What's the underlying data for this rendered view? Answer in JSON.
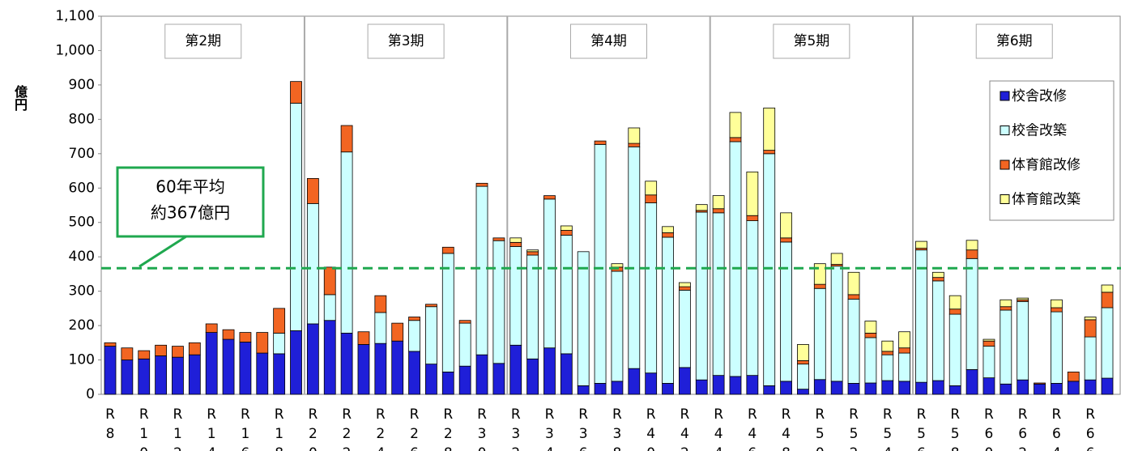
{
  "chart_data": {
    "type": "stacked-bar",
    "y_label": "億円",
    "categories": [
      "R 8",
      null,
      "R 10",
      null,
      "R 12",
      null,
      "R 14",
      null,
      "R 16",
      null,
      "R 18",
      null,
      "R 20",
      null,
      "R 22",
      null,
      "R 24",
      null,
      "R 26",
      null,
      "R 28",
      null,
      "R 30",
      null,
      "R 32",
      null,
      "R 34",
      null,
      "R 36",
      null,
      "R 38",
      null,
      "R 40",
      null,
      "R 42",
      null,
      "R 44",
      null,
      "R 46",
      null,
      "R 48",
      null,
      "R 50",
      null,
      "R 52",
      null,
      "R 54",
      null,
      "R 56",
      null,
      "R 58",
      null,
      "R 60",
      null,
      "R 62",
      null,
      "R 64",
      null,
      "R 66",
      null
    ],
    "series": [
      {
        "name": "校舎改修",
        "color": "#1f1fd8",
        "values": [
          140,
          100,
          103,
          112,
          108,
          115,
          180,
          160,
          152,
          120,
          118,
          185,
          205,
          215,
          178,
          145,
          148,
          155,
          125,
          88,
          65,
          82,
          115,
          90,
          143,
          103,
          135,
          118,
          25,
          32,
          38,
          75,
          62,
          32,
          78,
          42,
          55,
          52,
          55,
          25,
          38,
          15,
          43,
          38,
          32,
          33,
          40,
          38,
          35,
          40,
          25,
          72,
          48,
          30,
          42,
          30,
          32,
          38,
          42,
          47
        ]
      },
      {
        "name": "校舎改築",
        "color": "#ccffff",
        "values": [
          0,
          0,
          0,
          0,
          0,
          0,
          0,
          0,
          0,
          0,
          60,
          662,
          350,
          75,
          527,
          0,
          90,
          0,
          90,
          167,
          345,
          125,
          490,
          357,
          287,
          302,
          433,
          345,
          390,
          695,
          320,
          645,
          495,
          425,
          225,
          488,
          473,
          683,
          450,
          675,
          405,
          73,
          265,
          335,
          245,
          132,
          75,
          82,
          385,
          290,
          208,
          323,
          92,
          215,
          228,
          0,
          208,
          0,
          125,
          205
        ]
      },
      {
        "name": "体育館改修",
        "color": "#f26522",
        "values": [
          10,
          35,
          24,
          31,
          32,
          35,
          25,
          28,
          28,
          60,
          72,
          63,
          73,
          80,
          77,
          37,
          49,
          52,
          10,
          7,
          18,
          8,
          9,
          8,
          12,
          10,
          10,
          14,
          0,
          10,
          12,
          10,
          23,
          13,
          10,
          5,
          12,
          12,
          15,
          10,
          12,
          10,
          12,
          5,
          13,
          13,
          10,
          15,
          5,
          10,
          15,
          25,
          15,
          10,
          5,
          3,
          12,
          27,
          50,
          45
        ]
      },
      {
        "name": "体育館改築",
        "color": "#ffff99",
        "values": [
          0,
          0,
          0,
          0,
          0,
          0,
          0,
          0,
          0,
          0,
          0,
          0,
          0,
          0,
          0,
          0,
          0,
          0,
          0,
          0,
          0,
          0,
          0,
          0,
          13,
          5,
          0,
          13,
          0,
          0,
          10,
          45,
          40,
          18,
          12,
          17,
          38,
          73,
          127,
          123,
          73,
          47,
          60,
          32,
          65,
          35,
          30,
          47,
          20,
          15,
          39,
          28,
          5,
          20,
          5,
          0,
          23,
          0,
          8,
          21
        ]
      }
    ],
    "ylim": [
      0,
      1100
    ],
    "yticks": [
      0,
      100,
      200,
      300,
      400,
      500,
      600,
      700,
      800,
      900,
      {
        "value": 1000,
        "label": "1,000"
      },
      {
        "value": 1100,
        "label": "1,100"
      }
    ],
    "periods": [
      "第2期",
      "第3期",
      "第4期",
      "第5期",
      "第6期"
    ],
    "average": {
      "value": 367,
      "label_line1": "60年平均",
      "label_line2": "約367億円",
      "color": "#1fa84f"
    },
    "legend": "upper right"
  }
}
